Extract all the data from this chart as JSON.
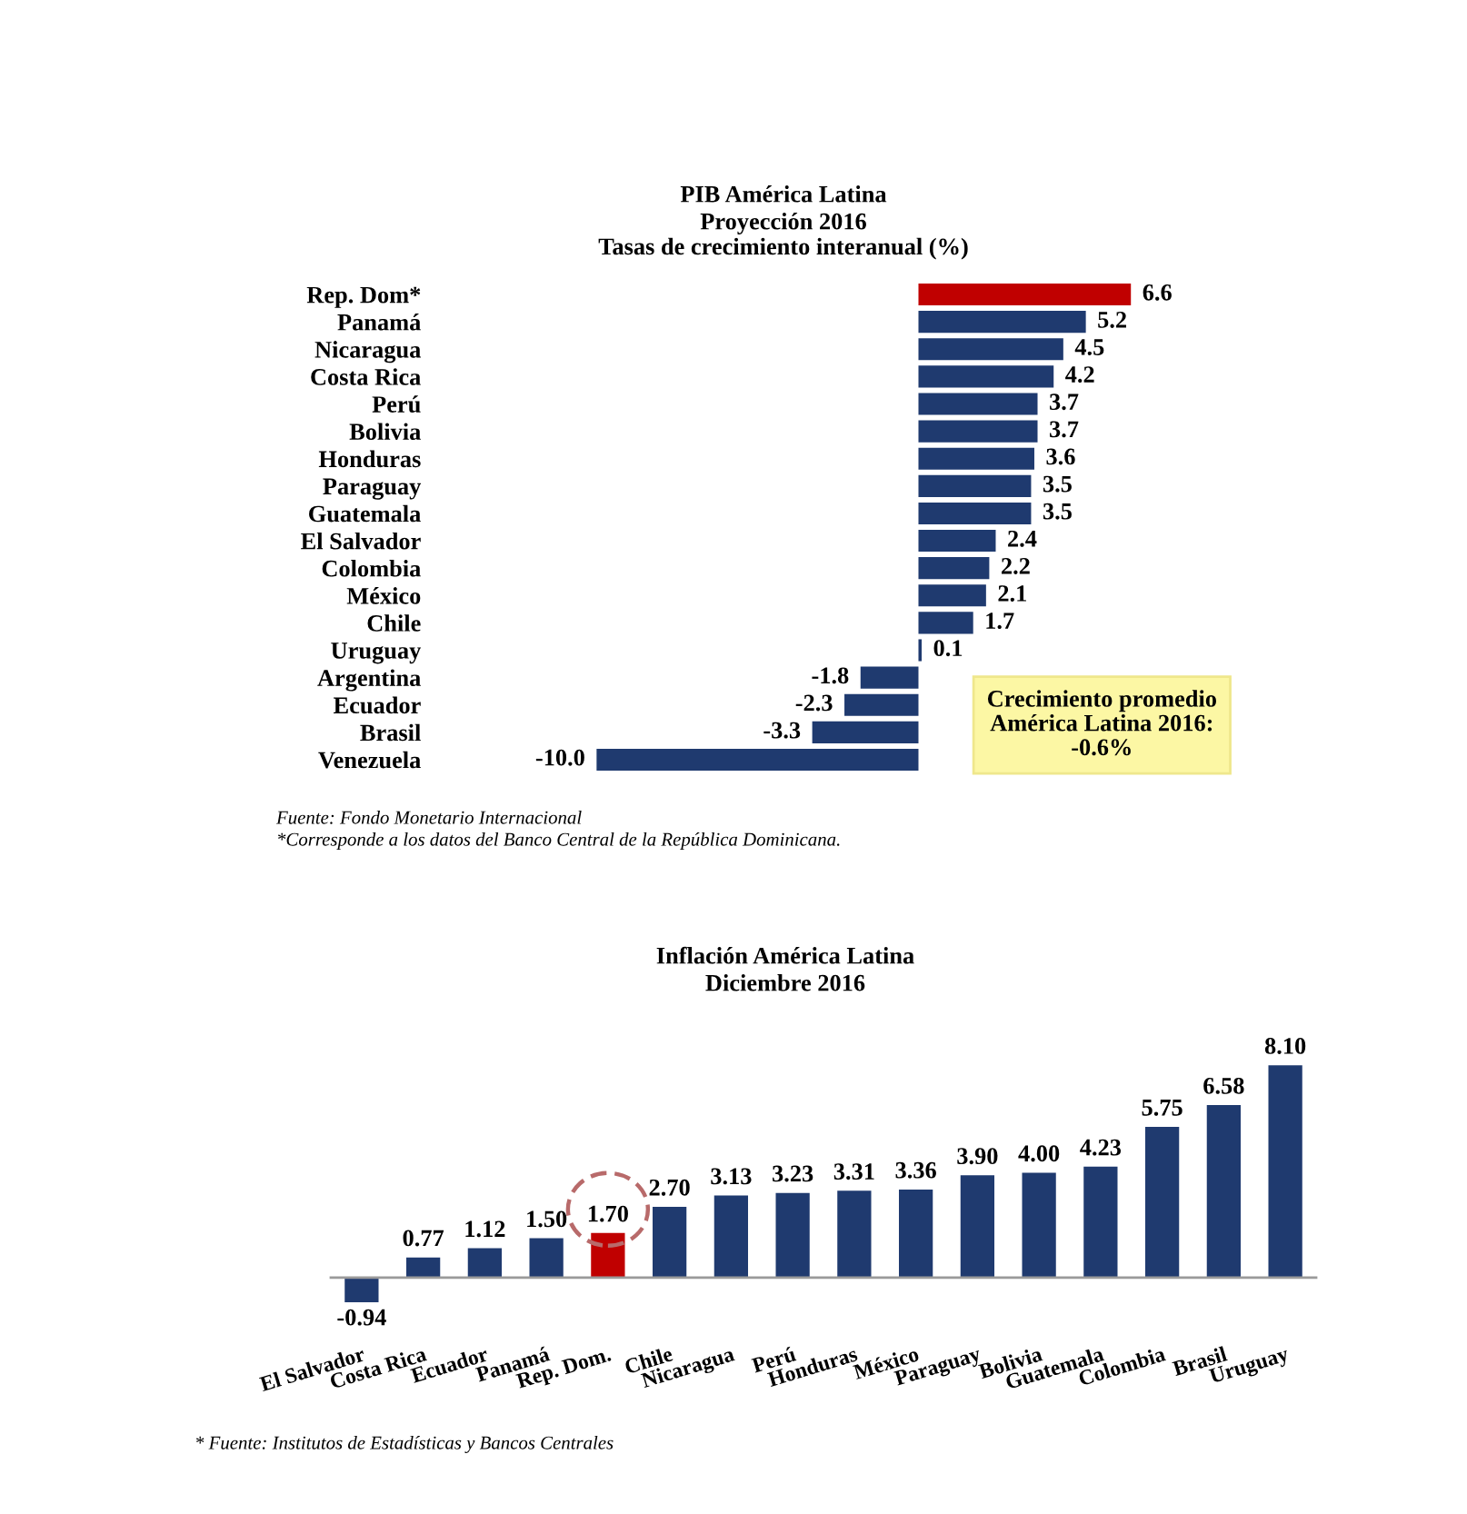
{
  "chart_data": [
    {
      "type": "bar",
      "orientation": "horizontal",
      "title": "PIB América Latina",
      "subtitle": "Proyección 2016\nTasas de crecimiento interanual (%)",
      "categories": [
        "Rep. Dom*",
        "Panamá",
        "Nicaragua",
        "Costa Rica",
        "Perú",
        "Bolivia",
        "Honduras",
        "Paraguay",
        "Guatemala",
        "El Salvador",
        "Colombia",
        "México",
        "Chile",
        "Uruguay",
        "Argentina",
        "Ecuador",
        "Brasil",
        "Venezuela"
      ],
      "values": [
        6.6,
        5.2,
        4.5,
        4.2,
        3.7,
        3.7,
        3.6,
        3.5,
        3.5,
        2.4,
        2.2,
        2.1,
        1.7,
        0.1,
        -1.8,
        -2.3,
        -3.3,
        -10.0
      ],
      "value_labels": [
        "6.6",
        "5.2",
        "4.5",
        "4.2",
        "3.7",
        "3.7",
        "3.6",
        "3.5",
        "3.5",
        "2.4",
        "2.2",
        "2.1",
        "1.7",
        "0.1",
        "-1.8",
        "-2.3",
        "-3.3",
        "-10.0"
      ],
      "colors": [
        "#c00000",
        "#1f3a6f",
        "#1f3a6f",
        "#1f3a6f",
        "#1f3a6f",
        "#1f3a6f",
        "#1f3a6f",
        "#1f3a6f",
        "#1f3a6f",
        "#1f3a6f",
        "#1f3a6f",
        "#1f3a6f",
        "#1f3a6f",
        "#1f3a6f",
        "#1f3a6f",
        "#1f3a6f",
        "#1f3a6f",
        "#1f3a6f"
      ],
      "tick_labels": "y",
      "annotations": [
        "Crecimiento promedio\nAmérica Latina 2016:\n-0.6%",
        "Fuente: Fondo Monetario Internacional",
        "*Corresponde a los datos del Banco Central de la República Dominicana."
      ]
    },
    {
      "type": "bar",
      "title": "Inflación América Latina",
      "subtitle": "Diciembre 2016",
      "categories": [
        "El Salvador",
        "Costa Rica",
        "Ecuador",
        "Panamá",
        "Rep. Dom.",
        "Chile",
        "Nicaragua",
        "Perú",
        "Honduras",
        "México",
        "Paraguay",
        "Bolivia",
        "Guatemala",
        "Colombia",
        "Brasil",
        "Uruguay"
      ],
      "values": [
        -0.94,
        0.77,
        1.12,
        1.5,
        1.7,
        2.7,
        3.13,
        3.23,
        3.31,
        3.36,
        3.9,
        4.0,
        4.23,
        5.75,
        6.58,
        8.1
      ],
      "value_labels": [
        "-0.94",
        "0.77",
        "1.12",
        "1.50",
        "1.70",
        "2.70",
        "3.13",
        "3.23",
        "3.31",
        "3.36",
        "3.90",
        "4.00",
        "4.23",
        "5.75",
        "6.58",
        "8.10"
      ],
      "colors": [
        "#1f3a6f",
        "#1f3a6f",
        "#1f3a6f",
        "#1f3a6f",
        "#c00000",
        "#1f3a6f",
        "#1f3a6f",
        "#1f3a6f",
        "#1f3a6f",
        "#1f3a6f",
        "#1f3a6f",
        "#1f3a6f",
        "#1f3a6f",
        "#1f3a6f",
        "#1f3a6f",
        "#1f3a6f"
      ],
      "tick_labels": "x",
      "annotations": [
        "* Fuente: Institutos de Estadísticas y Bancos Centrales"
      ]
    }
  ]
}
